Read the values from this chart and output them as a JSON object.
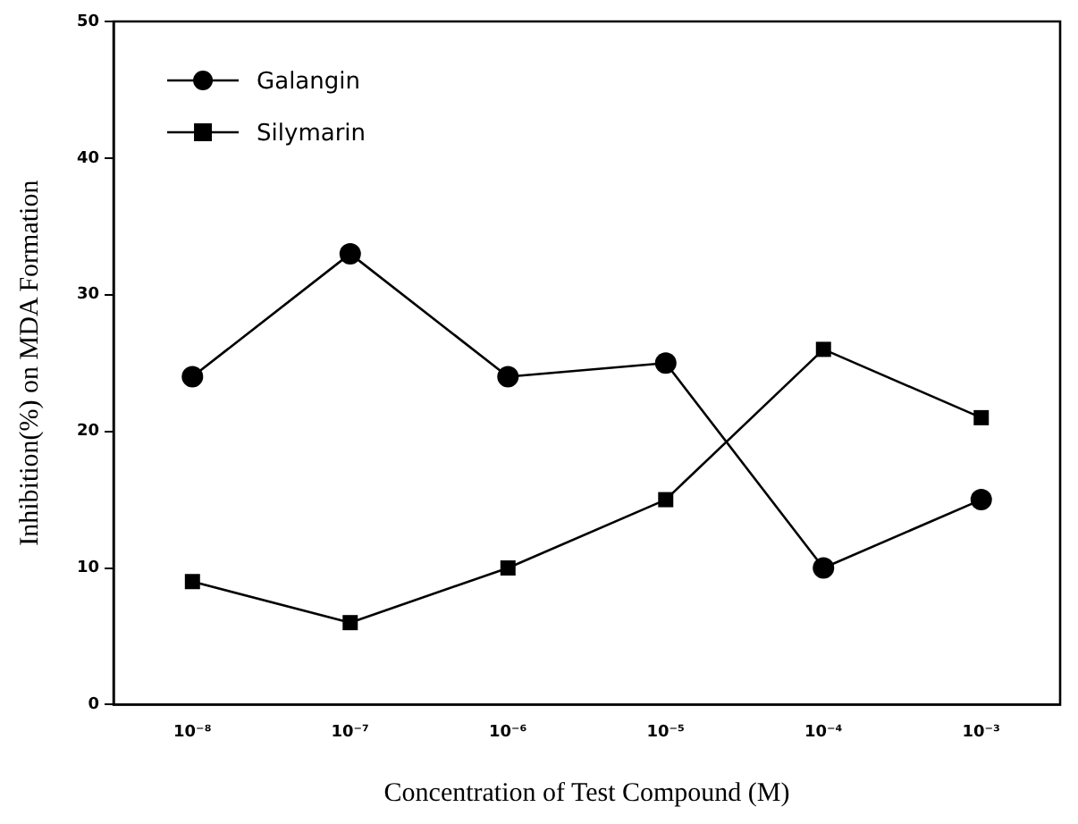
{
  "chart_data": {
    "type": "line",
    "xlabel": "Concentration of Test Compound (M)",
    "ylabel": "Inhibition(%) on MDA Formation",
    "categories": [
      "10⁻⁸",
      "10⁻⁷",
      "10⁻⁶",
      "10⁻⁵",
      "10⁻⁴",
      "10⁻³"
    ],
    "series": [
      {
        "name": "Galangin",
        "color": "#000000",
        "marker": "circle",
        "values": [
          24,
          33,
          24,
          25,
          10,
          15
        ]
      },
      {
        "name": "Silymarin",
        "color": "#000000",
        "marker": "square",
        "values": [
          9,
          6,
          10,
          15,
          26,
          21
        ]
      }
    ],
    "ylim": [
      0,
      50
    ],
    "yticks": [
      0,
      10,
      20,
      30,
      40,
      50
    ],
    "grid": false,
    "legend": "top left",
    "line_style": "solid"
  }
}
